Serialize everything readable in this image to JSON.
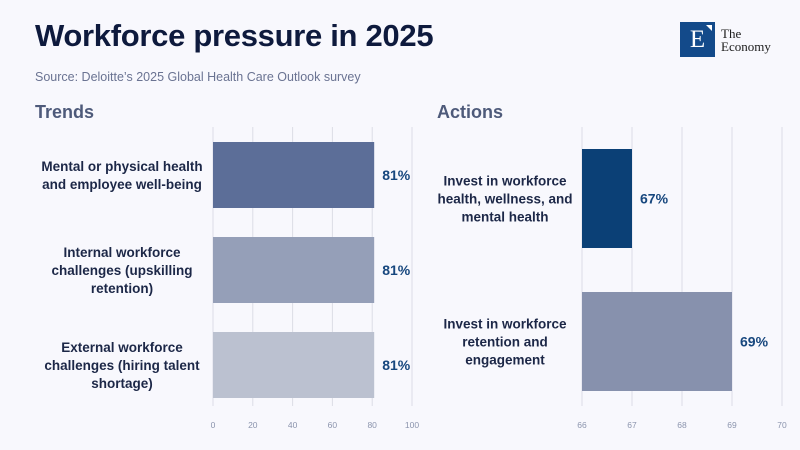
{
  "header": {
    "title": "Workforce pressure in 2025",
    "subtitle": "Source: Deloitte’s 2025 Global Health Care Outlook survey"
  },
  "logo": {
    "letter": "E",
    "line1": "The",
    "line2": "Economy",
    "color": "#134a8a"
  },
  "chart_data": [
    {
      "type": "bar",
      "orientation": "horizontal",
      "title": "Trends",
      "categories": [
        [
          "Mental or physical health",
          "and employee well-being"
        ],
        [
          "Internal workforce",
          "challenges (upskilling",
          "retention)"
        ],
        [
          "External workforce",
          "challenges (hiring talent",
          "shortage)"
        ]
      ],
      "values": [
        81,
        81,
        81
      ],
      "value_labels": [
        "81%",
        "81%",
        "81%"
      ],
      "colors": [
        "#5c6e98",
        "#959fb8",
        "#bbc1d0"
      ],
      "xlim": [
        0,
        100
      ],
      "xticks": [
        0,
        20,
        40,
        60,
        80,
        100
      ],
      "xlabel": "",
      "ylabel": "",
      "grid": true
    },
    {
      "type": "bar",
      "orientation": "horizontal",
      "title": "Actions",
      "categories": [
        [
          "Invest in workforce",
          "health, wellness, and",
          "mental health"
        ],
        [
          "Invest in workforce",
          "retention and",
          "engagement"
        ]
      ],
      "values": [
        67,
        69
      ],
      "value_labels": [
        "67%",
        "69%"
      ],
      "colors": [
        "#0b4076",
        "#8791ad"
      ],
      "xlim": [
        66,
        70
      ],
      "xticks": [
        66,
        67,
        68,
        69,
        70
      ],
      "xlabel": "",
      "ylabel": "",
      "grid": true
    }
  ]
}
